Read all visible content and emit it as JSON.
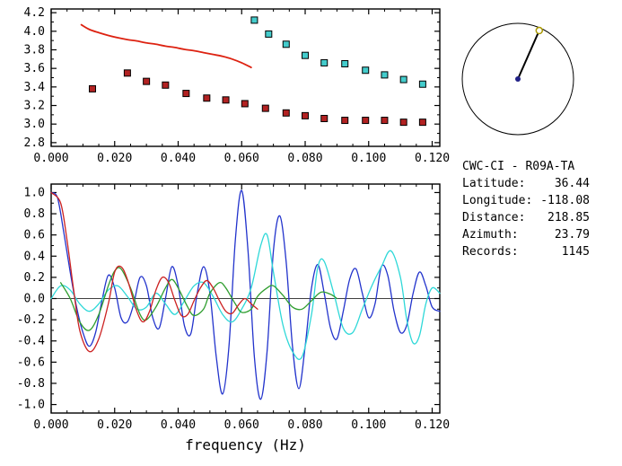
{
  "figure": {
    "bg_color": "#ffffff",
    "axis_color": "#000000"
  },
  "info": {
    "title": "CWC-CI - R09A-TA",
    "rows": [
      {
        "label": "Latitude:",
        "value": "36.44"
      },
      {
        "label": "Longitude:",
        "value": "-118.08"
      },
      {
        "label": "Distance:",
        "value": "218.85"
      },
      {
        "label": "Azimuth:",
        "value": "23.79"
      },
      {
        "label": "Records:",
        "value": "1145"
      }
    ]
  },
  "compass": {
    "azimuth_deg": 23.79,
    "ring_color": "#000000",
    "needle_color": "#000000",
    "station_marker_color": "#aa9900",
    "center_marker_color": "#222288"
  },
  "chart_data": [
    {
      "type": "scatter",
      "title": "",
      "xlabel": "",
      "ylabel": "",
      "xlim": [
        0,
        0.1224
      ],
      "ylim": [
        2.76,
        4.24
      ],
      "xticks": [
        0,
        0.02,
        0.04,
        0.06,
        0.08,
        0.1,
        0.12
      ],
      "xtick_labels": [
        "0.000",
        "0.020",
        "0.040",
        "0.060",
        "0.080",
        "0.100",
        "0.120"
      ],
      "xminor": 0.005,
      "yticks": [
        2.8,
        3.0,
        3.2,
        3.4,
        3.6,
        3.8,
        4.0,
        4.2
      ],
      "ytick_labels": [
        "2.8",
        "3.0",
        "3.2",
        "3.4",
        "3.6",
        "3.8",
        "4.0",
        "4.2"
      ],
      "yminor": 0.1,
      "grid": false,
      "zero_line": false,
      "series": [
        {
          "name": "reference-dispersion-curve",
          "type": "line",
          "color": "#dd2211",
          "width": 1.8,
          "points": [
            [
              0.0095,
              4.07
            ],
            [
              0.012,
              4.02
            ],
            [
              0.015,
              3.985
            ],
            [
              0.018,
              3.955
            ],
            [
              0.021,
              3.93
            ],
            [
              0.024,
              3.91
            ],
            [
              0.027,
              3.895
            ],
            [
              0.03,
              3.875
            ],
            [
              0.033,
              3.86
            ],
            [
              0.036,
              3.84
            ],
            [
              0.039,
              3.825
            ],
            [
              0.042,
              3.805
            ],
            [
              0.045,
              3.79
            ],
            [
              0.048,
              3.77
            ],
            [
              0.051,
              3.75
            ],
            [
              0.054,
              3.73
            ],
            [
              0.057,
              3.7
            ],
            [
              0.06,
              3.66
            ],
            [
              0.063,
              3.61
            ]
          ]
        },
        {
          "name": "measured-dispersion-points",
          "type": "scatter",
          "marker": "square",
          "color": "#b22222",
          "points": [
            [
              0.013,
              3.38
            ],
            [
              0.024,
              3.55
            ],
            [
              0.03,
              3.46
            ],
            [
              0.036,
              3.42
            ],
            [
              0.0425,
              3.33
            ],
            [
              0.049,
              3.28
            ],
            [
              0.055,
              3.26
            ],
            [
              0.061,
              3.22
            ],
            [
              0.0675,
              3.17
            ],
            [
              0.074,
              3.12
            ],
            [
              0.08,
              3.09
            ],
            [
              0.086,
              3.06
            ],
            [
              0.0925,
              3.04
            ],
            [
              0.099,
              3.04
            ],
            [
              0.105,
              3.04
            ],
            [
              0.111,
              3.02
            ],
            [
              0.117,
              3.02
            ]
          ]
        },
        {
          "name": "overtone-dispersion-points",
          "type": "scatter",
          "marker": "square",
          "color": "#44cccc",
          "points": [
            [
              0.064,
              4.12
            ],
            [
              0.0685,
              3.97
            ],
            [
              0.074,
              3.86
            ],
            [
              0.08,
              3.74
            ],
            [
              0.086,
              3.66
            ],
            [
              0.0925,
              3.65
            ],
            [
              0.099,
              3.58
            ],
            [
              0.105,
              3.53
            ],
            [
              0.111,
              3.48
            ],
            [
              0.117,
              3.43
            ]
          ]
        }
      ]
    },
    {
      "type": "line",
      "title": "",
      "xlabel": "frequency (Hz)",
      "ylabel": "",
      "xlim": [
        0,
        0.1224
      ],
      "ylim": [
        -1.08,
        1.08
      ],
      "xticks": [
        0,
        0.02,
        0.04,
        0.06,
        0.08,
        0.1,
        0.12
      ],
      "xtick_labels": [
        "0.000",
        "0.020",
        "0.040",
        "0.060",
        "0.080",
        "0.100",
        "0.120"
      ],
      "xminor": 0.005,
      "yticks": [
        1.0,
        0.8,
        0.6,
        0.4,
        0.2,
        0.0,
        -0.2,
        -0.4,
        -0.6,
        -0.8,
        -1.0
      ],
      "ytick_labels": [
        "1.0",
        "0.8",
        "0.6",
        "0.4",
        "0.2",
        "0.0",
        "-0.2",
        "-0.4",
        "-0.6",
        "-0.8",
        "-1.0"
      ],
      "yminor": 0.1,
      "grid": false,
      "zero_line": true,
      "series": [
        {
          "name": "waveform-blue",
          "type": "line",
          "color": "#2233cc",
          "width": 1.3,
          "points": [
            [
              0,
              1.0
            ],
            [
              0.002,
              0.95
            ],
            [
              0.004,
              0.62
            ],
            [
              0.006,
              0.25
            ],
            [
              0.008,
              -0.08
            ],
            [
              0.01,
              -0.32
            ],
            [
              0.012,
              -0.45
            ],
            [
              0.014,
              -0.32
            ],
            [
              0.016,
              -0.02
            ],
            [
              0.018,
              0.22
            ],
            [
              0.02,
              0.1
            ],
            [
              0.022,
              -0.18
            ],
            [
              0.024,
              -0.22
            ],
            [
              0.026,
              -0.05
            ],
            [
              0.028,
              0.2
            ],
            [
              0.03,
              0.12
            ],
            [
              0.032,
              -0.18
            ],
            [
              0.034,
              -0.28
            ],
            [
              0.036,
              0.0
            ],
            [
              0.038,
              0.3
            ],
            [
              0.04,
              0.12
            ],
            [
              0.042,
              -0.26
            ],
            [
              0.044,
              -0.33
            ],
            [
              0.046,
              0.05
            ],
            [
              0.048,
              0.3
            ],
            [
              0.05,
              0.05
            ],
            [
              0.052,
              -0.55
            ],
            [
              0.054,
              -0.9
            ],
            [
              0.056,
              -0.45
            ],
            [
              0.058,
              0.55
            ],
            [
              0.06,
              1.02
            ],
            [
              0.062,
              0.45
            ],
            [
              0.064,
              -0.55
            ],
            [
              0.066,
              -0.95
            ],
            [
              0.068,
              -0.5
            ],
            [
              0.07,
              0.45
            ],
            [
              0.072,
              0.78
            ],
            [
              0.074,
              0.35
            ],
            [
              0.076,
              -0.45
            ],
            [
              0.078,
              -0.85
            ],
            [
              0.08,
              -0.45
            ],
            [
              0.082,
              0.1
            ],
            [
              0.084,
              0.32
            ],
            [
              0.086,
              0.05
            ],
            [
              0.088,
              -0.28
            ],
            [
              0.09,
              -0.38
            ],
            [
              0.092,
              -0.12
            ],
            [
              0.094,
              0.18
            ],
            [
              0.096,
              0.28
            ],
            [
              0.098,
              0.05
            ],
            [
              0.1,
              -0.18
            ],
            [
              0.102,
              -0.05
            ],
            [
              0.104,
              0.3
            ],
            [
              0.106,
              0.22
            ],
            [
              0.108,
              -0.12
            ],
            [
              0.11,
              -0.32
            ],
            [
              0.112,
              -0.25
            ],
            [
              0.114,
              0.05
            ],
            [
              0.116,
              0.25
            ],
            [
              0.118,
              0.12
            ],
            [
              0.12,
              -0.08
            ],
            [
              0.1224,
              -0.12
            ]
          ]
        },
        {
          "name": "waveform-cyan",
          "type": "line",
          "color": "#2ed8d8",
          "width": 1.3,
          "points": [
            [
              0,
              0.0
            ],
            [
              0.003,
              0.12
            ],
            [
              0.006,
              0.08
            ],
            [
              0.009,
              -0.05
            ],
            [
              0.012,
              -0.12
            ],
            [
              0.015,
              -0.05
            ],
            [
              0.018,
              0.08
            ],
            [
              0.021,
              0.12
            ],
            [
              0.024,
              0.02
            ],
            [
              0.027,
              -0.1
            ],
            [
              0.03,
              -0.08
            ],
            [
              0.033,
              0.05
            ],
            [
              0.036,
              -0.05
            ],
            [
              0.039,
              -0.15
            ],
            [
              0.042,
              -0.02
            ],
            [
              0.045,
              0.12
            ],
            [
              0.048,
              0.15
            ],
            [
              0.051,
              0.02
            ],
            [
              0.054,
              -0.15
            ],
            [
              0.057,
              -0.22
            ],
            [
              0.06,
              -0.1
            ],
            [
              0.063,
              0.1
            ],
            [
              0.066,
              0.5
            ],
            [
              0.068,
              0.6
            ],
            [
              0.07,
              0.25
            ],
            [
              0.073,
              -0.25
            ],
            [
              0.076,
              -0.5
            ],
            [
              0.079,
              -0.55
            ],
            [
              0.082,
              -0.15
            ],
            [
              0.084,
              0.3
            ],
            [
              0.086,
              0.35
            ],
            [
              0.089,
              0.05
            ],
            [
              0.092,
              -0.28
            ],
            [
              0.095,
              -0.32
            ],
            [
              0.098,
              -0.1
            ],
            [
              0.101,
              0.12
            ],
            [
              0.104,
              0.3
            ],
            [
              0.107,
              0.45
            ],
            [
              0.11,
              0.2
            ],
            [
              0.112,
              -0.2
            ],
            [
              0.114,
              -0.42
            ],
            [
              0.116,
              -0.35
            ],
            [
              0.118,
              -0.05
            ],
            [
              0.12,
              0.1
            ],
            [
              0.1224,
              0.05
            ]
          ]
        },
        {
          "name": "waveform-green",
          "type": "line",
          "color": "#2f9e2f",
          "width": 1.3,
          "points": [
            [
              0.003,
              0.15
            ],
            [
              0.006,
              0.0
            ],
            [
              0.009,
              -0.22
            ],
            [
              0.012,
              -0.3
            ],
            [
              0.015,
              -0.15
            ],
            [
              0.018,
              0.12
            ],
            [
              0.02,
              0.26
            ],
            [
              0.022,
              0.28
            ],
            [
              0.025,
              0.1
            ],
            [
              0.028,
              -0.15
            ],
            [
              0.03,
              -0.2
            ],
            [
              0.033,
              -0.08
            ],
            [
              0.036,
              0.1
            ],
            [
              0.038,
              0.18
            ],
            [
              0.04,
              0.1
            ],
            [
              0.043,
              -0.08
            ],
            [
              0.045,
              -0.16
            ],
            [
              0.048,
              -0.1
            ],
            [
              0.05,
              0.05
            ],
            [
              0.053,
              0.15
            ],
            [
              0.055,
              0.1
            ],
            [
              0.058,
              -0.05
            ],
            [
              0.06,
              -0.13
            ],
            [
              0.063,
              -0.1
            ],
            [
              0.065,
              0.02
            ],
            [
              0.068,
              0.1
            ],
            [
              0.07,
              0.12
            ],
            [
              0.073,
              0.03
            ],
            [
              0.076,
              -0.08
            ],
            [
              0.079,
              -0.1
            ],
            [
              0.082,
              -0.02
            ],
            [
              0.085,
              0.06
            ],
            [
              0.088,
              0.04
            ],
            [
              0.09,
              0.0
            ]
          ]
        },
        {
          "name": "waveform-red",
          "type": "line",
          "color": "#cc2222",
          "width": 1.3,
          "points": [
            [
              0,
              1.0
            ],
            [
              0.003,
              0.9
            ],
            [
              0.005,
              0.55
            ],
            [
              0.007,
              0.1
            ],
            [
              0.009,
              -0.3
            ],
            [
              0.012,
              -0.5
            ],
            [
              0.015,
              -0.38
            ],
            [
              0.018,
              -0.05
            ],
            [
              0.02,
              0.25
            ],
            [
              0.022,
              0.3
            ],
            [
              0.024,
              0.18
            ],
            [
              0.027,
              -0.12
            ],
            [
              0.029,
              -0.22
            ],
            [
              0.031,
              -0.12
            ],
            [
              0.033,
              0.08
            ],
            [
              0.035,
              0.2
            ],
            [
              0.037,
              0.15
            ],
            [
              0.039,
              -0.02
            ],
            [
              0.041,
              -0.16
            ],
            [
              0.043,
              -0.15
            ],
            [
              0.045,
              -0.02
            ],
            [
              0.047,
              0.1
            ],
            [
              0.049,
              0.17
            ],
            [
              0.051,
              0.1
            ],
            [
              0.053,
              -0.02
            ],
            [
              0.055,
              -0.12
            ],
            [
              0.057,
              -0.14
            ],
            [
              0.059,
              -0.06
            ],
            [
              0.061,
              0.0
            ],
            [
              0.063,
              -0.05
            ],
            [
              0.065,
              -0.1
            ]
          ]
        }
      ]
    }
  ]
}
